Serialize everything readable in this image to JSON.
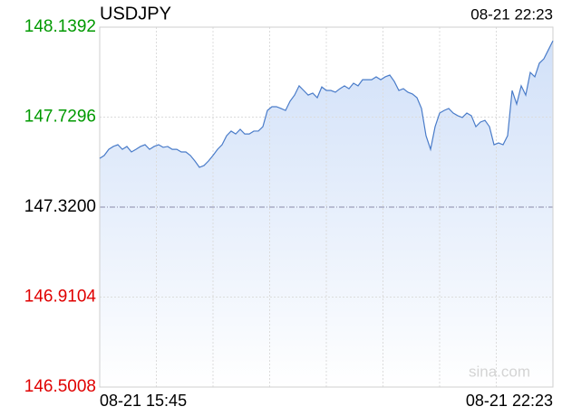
{
  "chart_data": {
    "type": "area",
    "title": "USDJPY",
    "time": "08-21 22:23",
    "watermark": "sina.com",
    "color": "#4a7cc9",
    "fill_color": "#d6e4fa",
    "grid": true,
    "ylim": [
      146.5008,
      148.1392
    ],
    "yticks": [
      146.5008,
      146.9104,
      {
        "value": 147.32,
        "label": "147.3200"
      },
      147.7296,
      148.1392
    ],
    "ytick_colors": [
      "#e00000",
      "#e00000",
      "#000000",
      "#009900",
      "#009900"
    ],
    "categories": [
      "08-21 15:45",
      null,
      null,
      null,
      null,
      null,
      null,
      null,
      null,
      null,
      null,
      null,
      null,
      null,
      null,
      null,
      null,
      null,
      null,
      null,
      null,
      null,
      null,
      null,
      null,
      null,
      null,
      null,
      null,
      null,
      null,
      null,
      null,
      null,
      null,
      null,
      null,
      null,
      null,
      null,
      null,
      null,
      null,
      null,
      null,
      null,
      null,
      null,
      null,
      null,
      null,
      null,
      null,
      null,
      null,
      null,
      null,
      null,
      null,
      null,
      null,
      null,
      null,
      null,
      null,
      null,
      null,
      null,
      null,
      null,
      null,
      null,
      null,
      null,
      null,
      null,
      null,
      null,
      null,
      null,
      null,
      null,
      null,
      null,
      null,
      null,
      null,
      null,
      null,
      null,
      null,
      null,
      null,
      null,
      null,
      null,
      null,
      null,
      null,
      null,
      "08-21 22:23"
    ],
    "values": [
      147.542,
      147.555,
      147.583,
      147.596,
      147.604,
      147.583,
      147.596,
      147.571,
      147.583,
      147.596,
      147.604,
      147.583,
      147.596,
      147.604,
      147.592,
      147.596,
      147.583,
      147.583,
      147.571,
      147.571,
      147.555,
      147.53,
      147.501,
      147.509,
      147.53,
      147.555,
      147.583,
      147.604,
      147.645,
      147.666,
      147.653,
      147.674,
      147.653,
      147.653,
      147.666,
      147.666,
      147.686,
      147.76,
      147.777,
      147.777,
      147.769,
      147.76,
      147.802,
      147.83,
      147.872,
      147.851,
      147.83,
      147.839,
      147.818,
      147.867,
      147.851,
      147.851,
      147.843,
      147.859,
      147.872,
      147.859,
      147.884,
      147.872,
      147.9,
      147.9,
      147.9,
      147.913,
      147.9,
      147.913,
      147.921,
      147.892,
      147.851,
      147.859,
      147.843,
      147.835,
      147.818,
      147.769,
      147.645,
      147.583,
      147.686,
      147.748,
      147.76,
      147.769,
      147.748,
      147.736,
      147.728,
      147.748,
      147.736,
      147.686,
      147.707,
      147.715,
      147.686,
      147.604,
      147.612,
      147.604,
      147.645,
      147.851,
      147.789,
      147.872,
      147.83,
      147.933,
      147.913,
      147.975,
      147.995,
      148.036,
      148.077
    ]
  }
}
